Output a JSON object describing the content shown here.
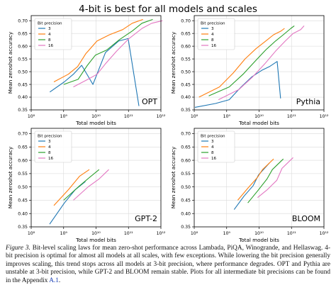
{
  "figure": {
    "title": "4-bit is best for all models and scales"
  },
  "colors": {
    "3": "#1f77b4",
    "4": "#ff7f0e",
    "8": "#2ca02c",
    "16": "#e377c2",
    "grid": "#d9d9d9",
    "frame": "#000000"
  },
  "chart_data": [
    {
      "type": "line",
      "model": "OPT",
      "xlabel": "Total model bits",
      "ylabel": "Mean zeroshot accuracy",
      "xscale": "log",
      "xlim": [
        100000000.0,
        1000000000000.0
      ],
      "ylim": [
        0.35,
        0.72
      ],
      "xticks": [
        "10⁸",
        "10⁹",
        "10¹⁰",
        "10¹¹",
        "10¹²"
      ],
      "yticks": [
        "0.35",
        "0.40",
        "0.45",
        "0.50",
        "0.55",
        "0.60",
        "0.65",
        "0.70"
      ],
      "legend": {
        "title": "Bit precision",
        "position": "top-left"
      },
      "grid": true,
      "series": [
        {
          "name": "3",
          "x": [
            375000000.0,
            1050000000.0,
            2000000000.0,
            3600000000.0,
            8000000000.0,
            19500000000.0,
            49500000000.0,
            98000000000.0,
            210000000000.0
          ],
          "y": [
            0.42,
            0.46,
            0.49,
            0.525,
            0.45,
            0.575,
            0.62,
            0.63,
            0.365
          ]
        },
        {
          "name": "4",
          "x": [
            500000000.0,
            1400000000.0,
            2700000000.0,
            4800000000.0,
            10700000000.0,
            26000000000.0,
            66000000000.0,
            130000000000.0,
            280000000000.0
          ],
          "y": [
            0.46,
            0.49,
            0.52,
            0.57,
            0.62,
            0.645,
            0.665,
            0.69,
            0.705
          ]
        },
        {
          "name": "8",
          "x": [
            1000000000.0,
            2800000000.0,
            5400000000.0,
            9600000000.0,
            21400000000.0,
            52000000000.0,
            132000000000.0,
            260000000000.0,
            560000000000.0
          ],
          "y": [
            0.45,
            0.47,
            0.525,
            0.565,
            0.585,
            0.625,
            0.66,
            0.69,
            0.705
          ]
        },
        {
          "name": "16",
          "x": [
            2000000000.0,
            5600000000.0,
            10800000000.0,
            19200000000.0,
            42800000000.0,
            104000000000.0,
            264000000000.0,
            520000000000.0,
            1120000000000.0
          ],
          "y": [
            0.44,
            0.47,
            0.49,
            0.53,
            0.58,
            0.63,
            0.67,
            0.69,
            0.7
          ]
        }
      ]
    },
    {
      "type": "line",
      "model": "Pythia",
      "xlabel": "Total model bits",
      "ylabel": "Mean zeroshot accuracy",
      "xscale": "log",
      "xlim": [
        100000000.0,
        1000000000000.0
      ],
      "ylim": [
        0.35,
        0.72
      ],
      "xticks": [
        "10⁸",
        "10⁹",
        "10¹⁰",
        "10¹¹",
        "10¹²"
      ],
      "yticks": [
        "0.35",
        "0.40",
        "0.45",
        "0.50",
        "0.55",
        "0.60",
        "0.65",
        "0.70"
      ],
      "legend": {
        "title": "Bit precision",
        "position": "top-left"
      },
      "grid": true,
      "series": [
        {
          "name": "3",
          "x": [
            105000000.0,
            450000000.0,
            1200000000.0,
            2800000000.0,
            6000000000.0,
            12000000000.0,
            21000000000.0,
            36000000000.0,
            46000000000.0
          ],
          "y": [
            0.36,
            0.375,
            0.39,
            0.44,
            0.48,
            0.505,
            0.52,
            0.54,
            0.395
          ]
        },
        {
          "name": "4",
          "x": [
            140000000.0,
            600000000.0,
            1600000000.0,
            3700000000.0,
            8000000000.0,
            16000000000.0,
            28000000000.0,
            48000000000.0,
            61000000000.0
          ],
          "y": [
            0.4,
            0.44,
            0.495,
            0.55,
            0.59,
            0.62,
            0.645,
            0.66,
            0.67
          ]
        },
        {
          "name": "8",
          "x": [
            280000000.0,
            1200000000.0,
            3200000000.0,
            7400000000.0,
            16000000000.0,
            32000000000.0,
            56000000000.0,
            96000000000.0,
            122000000000.0
          ],
          "y": [
            0.405,
            0.44,
            0.49,
            0.54,
            0.585,
            0.62,
            0.645,
            0.67,
            0.68
          ]
        },
        {
          "name": "16",
          "x": [
            560000000.0,
            2400000000.0,
            6400000000.0,
            14800000000.0,
            32000000000.0,
            64000000000.0,
            112000000000.0,
            192000000000.0,
            244000000000.0
          ],
          "y": [
            0.39,
            0.43,
            0.48,
            0.53,
            0.58,
            0.62,
            0.65,
            0.665,
            0.68
          ]
        }
      ]
    },
    {
      "type": "line",
      "model": "GPT-2",
      "xlabel": "Total model bits",
      "ylabel": "Mean zeroshot accuracy",
      "xscale": "log",
      "xlim": [
        100000000.0,
        1000000000000.0
      ],
      "ylim": [
        0.35,
        0.72
      ],
      "xticks": [
        "10⁸",
        "10⁹",
        "10¹⁰",
        "10¹¹",
        "10¹²"
      ],
      "yticks": [
        "0.35",
        "0.40",
        "0.45",
        "0.50",
        "0.55",
        "0.60",
        "0.65",
        "0.70"
      ],
      "legend": {
        "title": "Bit precision",
        "position": "top-left"
      },
      "grid": true,
      "series": [
        {
          "name": "3",
          "x": [
            370000000.0,
            1060000000.0,
            2300000000.0,
            4700000000.0
          ],
          "y": [
            0.36,
            0.44,
            0.49,
            0.52
          ]
        },
        {
          "name": "4",
          "x": [
            500000000.0,
            1420000000.0,
            3100000000.0,
            6200000000.0
          ],
          "y": [
            0.43,
            0.49,
            0.54,
            0.565
          ]
        },
        {
          "name": "8",
          "x": [
            1000000000.0,
            2840000000.0,
            6200000000.0,
            12400000000.0
          ],
          "y": [
            0.45,
            0.5,
            0.535,
            0.565
          ]
        },
        {
          "name": "16",
          "x": [
            2000000000.0,
            5700000000.0,
            12400000000.0,
            24800000000.0
          ],
          "y": [
            0.45,
            0.5,
            0.53,
            0.565
          ]
        }
      ]
    },
    {
      "type": "line",
      "model": "BLOOM",
      "xlabel": "Total model bits",
      "ylabel": "Mean zeroshot accuracy",
      "xscale": "log",
      "xlim": [
        100000000.0,
        1000000000000.0
      ],
      "ylim": [
        0.35,
        0.72
      ],
      "xticks": [
        "10⁸",
        "10⁹",
        "10¹⁰",
        "10¹¹",
        "10¹²"
      ],
      "yticks": [
        "0.35",
        "0.40",
        "0.45",
        "0.50",
        "0.55",
        "0.60",
        "0.65",
        "0.70"
      ],
      "legend": {
        "title": "Bit precision",
        "position": "top-left"
      },
      "grid": true,
      "series": [
        {
          "name": "3",
          "x": [
            1700000000.0,
            3400000000.0,
            6600000000.0,
            9600000000.0,
            21000000000.0
          ],
          "y": [
            0.415,
            0.465,
            0.505,
            0.545,
            0.59
          ]
        },
        {
          "name": "4",
          "x": [
            2200000000.0,
            4500000000.0,
            8800000000.0,
            12800000000.0,
            28000000000.0
          ],
          "y": [
            0.45,
            0.495,
            0.535,
            0.565,
            0.605
          ]
        },
        {
          "name": "8",
          "x": [
            4500000000.0,
            9000000000.0,
            17600000000.0,
            25600000000.0,
            56000000000.0
          ],
          "y": [
            0.44,
            0.485,
            0.53,
            0.565,
            0.605
          ]
        },
        {
          "name": "16",
          "x": [
            9000000000.0,
            18000000000.0,
            35200000000.0,
            51200000000.0,
            112000000000.0
          ],
          "y": [
            0.46,
            0.49,
            0.525,
            0.57,
            0.61
          ]
        }
      ]
    }
  ],
  "caption": {
    "label": "Figure 3.",
    "before_link": " Bit-level scaling laws for mean zero-shot performance across Lambada, PiQA, Winogrande, and Hellaswag. 4-bit precision is optimal for almost all models at all scales, with few exceptions. While lowering the bit precision generally improves scaling, this trend stops across all models at 3-bit precision, where performance degrades. OPT and Pythia are unstable at 3-bit precision, while GPT-2 and BLOOM remain stable. Plots for all intermediate bit precisions can be found in the Appendix ",
    "link": "A.1",
    "after_link": "."
  }
}
